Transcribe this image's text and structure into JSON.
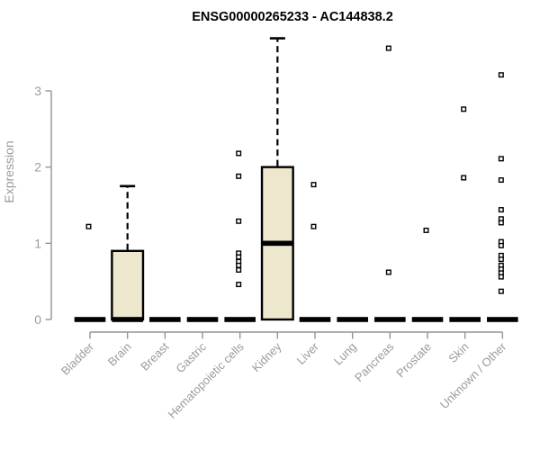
{
  "chart_data": {
    "type": "box",
    "title": "ENSG00000265233 - AC144838.2",
    "xlabel": "",
    "ylabel": "Expression",
    "ylim": [
      0,
      3.8
    ],
    "yticks": [
      0,
      1,
      2,
      3
    ],
    "grid": false,
    "legend": "none",
    "categories": [
      "Bladder",
      "Brain",
      "Breast",
      "Gastric",
      "Hematopoietic cells",
      "Kidney",
      "Liver",
      "Lung",
      "Pancreas",
      "Prostate",
      "Skin",
      "Unknown / Other"
    ],
    "series": [
      {
        "category": "Bladder",
        "whisker_low": 0,
        "q1": 0,
        "median": 0,
        "q3": 0,
        "whisker_high": 0,
        "outliers": [
          1.22
        ]
      },
      {
        "category": "Brain",
        "whisker_low": 0,
        "q1": 0,
        "median": 0,
        "q3": 0.9,
        "whisker_high": 1.75,
        "outliers": []
      },
      {
        "category": "Breast",
        "whisker_low": 0,
        "q1": 0,
        "median": 0,
        "q3": 0,
        "whisker_high": 0,
        "outliers": []
      },
      {
        "category": "Gastric",
        "whisker_low": 0,
        "q1": 0,
        "median": 0,
        "q3": 0,
        "whisker_high": 0,
        "outliers": []
      },
      {
        "category": "Hematopoietic cells",
        "whisker_low": 0,
        "q1": 0,
        "median": 0,
        "q3": 0,
        "whisker_high": 0,
        "outliers": [
          2.18,
          1.88,
          1.29,
          0.87,
          0.82,
          0.76,
          0.71,
          0.65,
          0.46
        ]
      },
      {
        "category": "Kidney",
        "whisker_low": 0,
        "q1": 0,
        "median": 1.0,
        "q3": 2.0,
        "whisker_high": 3.69,
        "outliers": []
      },
      {
        "category": "Liver",
        "whisker_low": 0,
        "q1": 0,
        "median": 0,
        "q3": 0,
        "whisker_high": 0,
        "outliers": [
          1.77,
          1.22
        ]
      },
      {
        "category": "Lung",
        "whisker_low": 0,
        "q1": 0,
        "median": 0,
        "q3": 0,
        "whisker_high": 0,
        "outliers": []
      },
      {
        "category": "Pancreas",
        "whisker_low": 0,
        "q1": 0,
        "median": 0,
        "q3": 0,
        "whisker_high": 0,
        "outliers": [
          3.56,
          0.62
        ]
      },
      {
        "category": "Prostate",
        "whisker_low": 0,
        "q1": 0,
        "median": 0,
        "q3": 0,
        "whisker_high": 0,
        "outliers": [
          1.17
        ]
      },
      {
        "category": "Skin",
        "whisker_low": 0,
        "q1": 0,
        "median": 0,
        "q3": 0,
        "whisker_high": 0,
        "outliers": [
          2.76,
          1.86
        ]
      },
      {
        "category": "Unknown / Other",
        "whisker_low": 0,
        "q1": 0,
        "median": 0,
        "q3": 0,
        "whisker_high": 0,
        "outliers": [
          3.21,
          2.11,
          1.83,
          1.44,
          1.32,
          1.27,
          1.02,
          0.97,
          0.84,
          0.79,
          0.71,
          0.66,
          0.61,
          0.56,
          0.37
        ]
      }
    ],
    "colors": {
      "background": "#FFFFFF",
      "box_fill": "#ECE7CD",
      "box_stroke": "#000000",
      "median": "#000000",
      "whisker": "#000000",
      "outlier_stroke": "#000000",
      "outlier_fill": "#FFFFFF",
      "axis": "#949494",
      "label": "#9B9B9B",
      "title": "#000000"
    }
  }
}
